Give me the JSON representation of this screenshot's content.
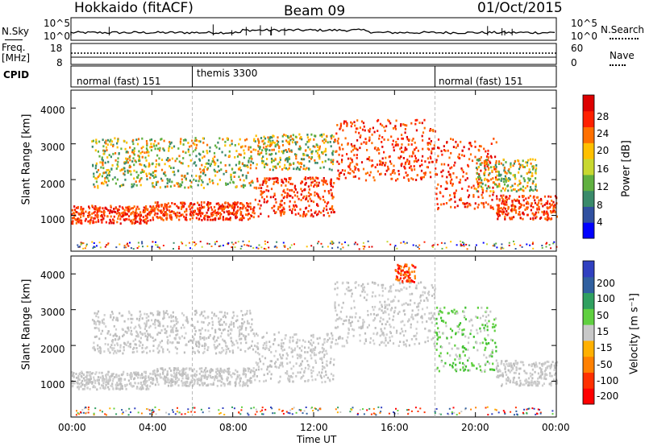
{
  "header": {
    "station": "Hokkaido (fitACF)",
    "beam": "Beam 09",
    "date": "01/Oct/2015"
  },
  "noise_panel": {
    "left_label": "N.Sky",
    "right_label": "N.Search",
    "ticks": [
      "10^5",
      "10^0"
    ]
  },
  "freq_panel": {
    "left_label_1": "Freq.",
    "left_label_2": "[MHz]",
    "left_ticks": [
      "18",
      "8"
    ],
    "right_ticks": [
      "60",
      "0"
    ],
    "right_label": "Nave"
  },
  "cpid_panel": {
    "label": "CPID",
    "segments": [
      {
        "name": "normal (fast) 151",
        "start_hour": 0
      },
      {
        "name": "themis 3300",
        "start_hour": 6
      },
      {
        "name": "normal (fast) 151",
        "start_hour": 18
      }
    ]
  },
  "time_axis": {
    "label": "Time UT",
    "ticks": [
      "00:00",
      "04:00",
      "08:00",
      "12:00",
      "16:00",
      "20:00",
      "00:00"
    ]
  },
  "chart_data": [
    {
      "type": "heatmap",
      "title": "",
      "xlabel": "Time UT",
      "ylabel": "Slant Range [km]",
      "xlim": [
        0,
        24
      ],
      "ylim": [
        0,
        4500
      ],
      "yticks": [
        1000,
        2000,
        3000,
        4000
      ],
      "colorbar": {
        "label": "Power [dB]",
        "ticks": [
          "28",
          "24",
          "20",
          "16",
          "12",
          "8",
          "4"
        ],
        "colors": [
          "#0000ff",
          "#3050a0",
          "#3a8a6a",
          "#60b040",
          "#c8d830",
          "#ffc000",
          "#ff7000",
          "#ff2000",
          "#dd0000"
        ]
      },
      "bands": [
        {
          "start": 0,
          "end": 4,
          "range_lo": 800,
          "range_hi": 1300,
          "level": "high"
        },
        {
          "start": 4,
          "end": 9,
          "range_lo": 900,
          "range_hi": 1400,
          "level": "high"
        },
        {
          "start": 9,
          "end": 13,
          "range_lo": 1000,
          "range_hi": 2100,
          "level": "high"
        },
        {
          "start": 13,
          "end": 18,
          "range_lo": 2000,
          "range_hi": 3700,
          "level": "high"
        },
        {
          "start": 18,
          "end": 21,
          "range_lo": 1200,
          "range_hi": 3200,
          "level": "high"
        },
        {
          "start": 21,
          "end": 24,
          "range_lo": 900,
          "range_hi": 1600,
          "level": "high"
        },
        {
          "start": 1,
          "end": 9,
          "range_lo": 1800,
          "range_hi": 3200,
          "level": "mid"
        },
        {
          "start": 9,
          "end": 13,
          "range_lo": 2300,
          "range_hi": 3300,
          "level": "mid"
        },
        {
          "start": 20,
          "end": 23,
          "range_lo": 1700,
          "range_hi": 2600,
          "level": "mid"
        }
      ]
    },
    {
      "type": "heatmap",
      "title": "",
      "xlabel": "Time UT",
      "ylabel": "Slant Range [km]",
      "xlim": [
        0,
        24
      ],
      "ylim": [
        0,
        4500
      ],
      "yticks": [
        1000,
        2000,
        3000,
        4000
      ],
      "colorbar": {
        "label": "Velocity [m s⁻¹]",
        "ticks": [
          "200",
          "100",
          "50",
          "15",
          "-15",
          "-50",
          "-100",
          "-200"
        ],
        "colors": [
          "#ff0000",
          "#ff3000",
          "#ff8000",
          "#ffb000",
          "#c8c8c8",
          "#60d040",
          "#30a060",
          "#3060a0",
          "#3040c0"
        ]
      },
      "bands": [
        {
          "start": 0,
          "end": 4,
          "range_lo": 800,
          "range_hi": 1300,
          "level": "ground"
        },
        {
          "start": 4,
          "end": 9,
          "range_lo": 900,
          "range_hi": 1400,
          "level": "ground"
        },
        {
          "start": 9,
          "end": 13,
          "range_lo": 1000,
          "range_hi": 2400,
          "level": "ground"
        },
        {
          "start": 13,
          "end": 18,
          "range_lo": 2000,
          "range_hi": 3800,
          "level": "ground"
        },
        {
          "start": 18,
          "end": 21,
          "range_lo": 1300,
          "range_hi": 3100,
          "level": "positive"
        },
        {
          "start": 21,
          "end": 24,
          "range_lo": 900,
          "range_hi": 1600,
          "level": "ground"
        },
        {
          "start": 1,
          "end": 9,
          "range_lo": 1800,
          "range_hi": 3000,
          "level": "ground"
        },
        {
          "start": 16,
          "end": 17,
          "range_lo": 3800,
          "range_hi": 4300,
          "level": "negative"
        }
      ]
    }
  ]
}
